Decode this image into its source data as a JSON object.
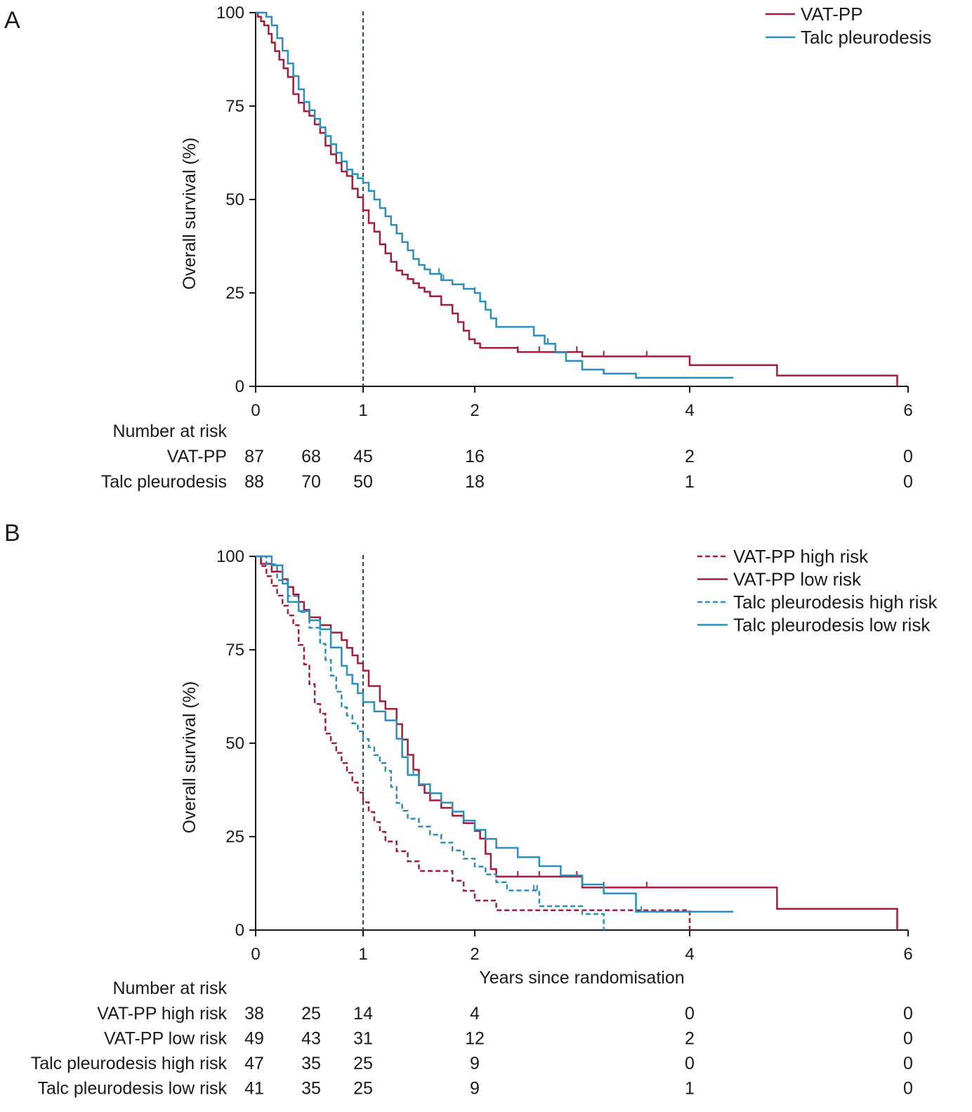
{
  "chart_data": [
    {
      "type": "line",
      "panel_label": "A",
      "step": true,
      "xlabel": "",
      "ylabel": "Overall survival (%)",
      "xlim": [
        0,
        6
      ],
      "ylim": [
        0,
        100
      ],
      "x_ticks": [
        0,
        1,
        2,
        4,
        6
      ],
      "y_ticks": [
        0,
        25,
        50,
        75,
        100
      ],
      "reference_line_x": 1,
      "legend_position": "top-right",
      "series": [
        {
          "name": "VAT-PP",
          "color": "#a51c3c",
          "dash": false,
          "x": [
            0,
            0.02,
            0.05,
            0.08,
            0.12,
            0.15,
            0.18,
            0.22,
            0.26,
            0.3,
            0.35,
            0.4,
            0.45,
            0.5,
            0.55,
            0.6,
            0.65,
            0.7,
            0.75,
            0.8,
            0.85,
            0.9,
            0.95,
            1.0,
            1.05,
            1.1,
            1.15,
            1.2,
            1.25,
            1.3,
            1.35,
            1.4,
            1.45,
            1.5,
            1.55,
            1.6,
            1.7,
            1.8,
            1.85,
            1.9,
            1.95,
            2.0,
            2.05,
            2.1,
            2.15,
            2.25,
            2.4,
            2.6,
            3.0,
            3.2,
            4.0,
            4.8,
            5.9
          ],
          "y": [
            100,
            98.9,
            97.7,
            96.6,
            94.3,
            92.0,
            89.7,
            87.4,
            85.1,
            82.8,
            78.2,
            75.9,
            73.6,
            72.4,
            70.1,
            67.8,
            64.4,
            62.1,
            59.8,
            57.5,
            56.3,
            52.9,
            50.6,
            47.1,
            43.7,
            41.4,
            38.0,
            35.6,
            33.3,
            31.0,
            29.9,
            28.7,
            27.6,
            26.4,
            25.3,
            24.1,
            21.8,
            19.5,
            17.2,
            14.9,
            12.6,
            11.5,
            10.3,
            10.3,
            10.3,
            10.3,
            9.2,
            9.2,
            8.0,
            8.0,
            5.7,
            2.9,
            0
          ],
          "censor_x": [
            2.4,
            2.6,
            2.95,
            3.2,
            3.6
          ]
        },
        {
          "name": "Talc pleurodesis",
          "color": "#2a8fc0",
          "dash": false,
          "x": [
            0,
            0.1,
            0.15,
            0.2,
            0.25,
            0.3,
            0.35,
            0.4,
            0.45,
            0.5,
            0.55,
            0.6,
            0.65,
            0.7,
            0.75,
            0.8,
            0.85,
            0.9,
            0.95,
            1.0,
            1.05,
            1.1,
            1.15,
            1.2,
            1.25,
            1.3,
            1.35,
            1.4,
            1.45,
            1.5,
            1.55,
            1.6,
            1.7,
            1.8,
            1.9,
            2.0,
            2.05,
            2.1,
            2.15,
            2.2,
            2.3,
            2.4,
            2.55,
            2.65,
            2.75,
            2.85,
            3.0,
            3.2,
            3.5,
            4.4
          ],
          "y": [
            100,
            98.9,
            96.6,
            93.2,
            89.8,
            86.4,
            83.0,
            79.5,
            76.1,
            73.9,
            71.6,
            69.3,
            67.0,
            64.8,
            62.5,
            60.2,
            58.0,
            56.8,
            55.7,
            54.5,
            52.3,
            50.0,
            47.7,
            45.5,
            43.2,
            40.9,
            38.6,
            36.4,
            34.1,
            32.5,
            31.3,
            30.1,
            28.4,
            27.3,
            26.1,
            25.0,
            22.7,
            20.5,
            18.2,
            15.9,
            15.9,
            15.9,
            13.6,
            11.4,
            9.1,
            6.8,
            4.5,
            3.4,
            2.3,
            2.3
          ],
          "censor_x": [
            1.68,
            1.72,
            1.9,
            2.0,
            2.65,
            2.68
          ]
        }
      ],
      "risk_table": {
        "title": "Number at risk",
        "times": [
          0,
          0.5,
          1,
          2,
          4,
          6
        ],
        "rows": [
          {
            "label": "VAT-PP",
            "values": [
              "87",
              "68",
              "45",
              "16",
              "2",
              "0"
            ]
          },
          {
            "label": "Talc pleurodesis",
            "values": [
              "88",
              "70",
              "50",
              "18",
              "1",
              "0"
            ]
          }
        ]
      }
    },
    {
      "type": "line",
      "panel_label": "B",
      "step": true,
      "xlabel": "Years since randomisation",
      "ylabel": "Overall survival (%)",
      "xlim": [
        0,
        6
      ],
      "ylim": [
        0,
        100
      ],
      "x_ticks": [
        0,
        1,
        2,
        4,
        6
      ],
      "y_ticks": [
        0,
        25,
        50,
        75,
        100
      ],
      "reference_line_x": 1,
      "legend_position": "top-right",
      "series": [
        {
          "name": "VAT-PP high risk",
          "color": "#a51c3c",
          "dash": true,
          "x": [
            0,
            0.05,
            0.1,
            0.15,
            0.2,
            0.25,
            0.3,
            0.35,
            0.4,
            0.45,
            0.5,
            0.55,
            0.6,
            0.65,
            0.7,
            0.75,
            0.8,
            0.85,
            0.9,
            0.95,
            1.0,
            1.05,
            1.1,
            1.15,
            1.2,
            1.3,
            1.4,
            1.5,
            1.6,
            1.7,
            1.8,
            1.9,
            2.0,
            2.1,
            2.2,
            2.4,
            3.0,
            4.0
          ],
          "y": [
            100,
            97.4,
            94.7,
            92.1,
            89.5,
            86.8,
            84.2,
            81.6,
            76.3,
            71.1,
            65.8,
            60.5,
            57.9,
            52.6,
            50.0,
            47.4,
            44.7,
            42.1,
            39.5,
            36.8,
            34.2,
            31.6,
            28.9,
            26.3,
            23.7,
            21.1,
            18.4,
            15.8,
            15.8,
            15.8,
            13.2,
            10.5,
            7.9,
            7.9,
            5.3,
            5.3,
            5.3,
            0
          ],
          "censor_x": []
        },
        {
          "name": "VAT-PP low risk",
          "color": "#a51c3c",
          "dash": false,
          "x": [
            0,
            0.05,
            0.15,
            0.25,
            0.3,
            0.35,
            0.4,
            0.45,
            0.5,
            0.6,
            0.7,
            0.8,
            0.85,
            0.9,
            0.95,
            1.0,
            1.05,
            1.15,
            1.2,
            1.3,
            1.35,
            1.4,
            1.45,
            1.5,
            1.55,
            1.6,
            1.7,
            1.8,
            1.9,
            2.0,
            2.05,
            2.1,
            2.15,
            2.2,
            2.4,
            3.0,
            4.8,
            5.9
          ],
          "y": [
            100,
            98.0,
            95.9,
            93.9,
            91.8,
            89.8,
            87.8,
            85.7,
            83.7,
            81.6,
            79.6,
            77.6,
            75.5,
            73.5,
            71.4,
            69.4,
            65.3,
            61.2,
            59.2,
            55.1,
            51.0,
            46.9,
            42.9,
            38.8,
            36.7,
            34.7,
            32.7,
            30.6,
            28.6,
            26.5,
            24.5,
            20.4,
            16.3,
            14.3,
            14.3,
            11.4,
            5.7,
            0
          ],
          "censor_x": [
            2.4,
            2.6,
            2.95,
            3.2,
            3.6
          ]
        },
        {
          "name": "Talc pleurodesis high risk",
          "color": "#2a8fc0",
          "dash": true,
          "x": [
            0,
            0.1,
            0.2,
            0.3,
            0.4,
            0.5,
            0.6,
            0.65,
            0.7,
            0.75,
            0.8,
            0.85,
            0.9,
            0.95,
            1.0,
            1.05,
            1.1,
            1.15,
            1.2,
            1.25,
            1.3,
            1.35,
            1.4,
            1.5,
            1.6,
            1.7,
            1.8,
            1.9,
            2.0,
            2.1,
            2.2,
            2.3,
            2.5,
            2.6,
            3.0,
            3.2
          ],
          "y": [
            100,
            97.9,
            93.6,
            89.4,
            85.1,
            80.9,
            76.6,
            72.3,
            68.1,
            63.8,
            59.6,
            57.4,
            55.3,
            53.2,
            51.1,
            48.9,
            46.8,
            44.7,
            42.6,
            38.3,
            34.0,
            31.9,
            29.8,
            27.7,
            25.5,
            23.4,
            21.3,
            19.1,
            17.0,
            14.9,
            12.8,
            10.6,
            10.6,
            6.4,
            4.3,
            0
          ],
          "censor_x": [
            2.55,
            2.58
          ]
        },
        {
          "name": "Talc pleurodesis low risk",
          "color": "#2a8fc0",
          "dash": false,
          "x": [
            0,
            0.15,
            0.25,
            0.3,
            0.4,
            0.5,
            0.6,
            0.7,
            0.8,
            0.85,
            0.9,
            0.95,
            1.0,
            1.1,
            1.2,
            1.3,
            1.35,
            1.4,
            1.5,
            1.6,
            1.7,
            1.8,
            1.9,
            2.0,
            2.1,
            2.2,
            2.4,
            2.6,
            2.8,
            3.0,
            3.2,
            3.5,
            4.4
          ],
          "y": [
            100,
            97.6,
            92.7,
            87.8,
            85.4,
            82.9,
            80.5,
            75.6,
            70.7,
            68.3,
            65.9,
            63.4,
            61.0,
            58.5,
            56.1,
            51.2,
            46.3,
            41.5,
            39.0,
            36.6,
            34.1,
            31.7,
            29.3,
            26.8,
            24.4,
            22.0,
            19.5,
            17.1,
            14.6,
            12.2,
            9.8,
            4.9,
            4.9
          ],
          "censor_x": [
            1.45,
            1.7,
            1.9,
            2.0,
            3.55
          ]
        }
      ],
      "risk_table": {
        "title": "Number at risk",
        "times": [
          0,
          0.5,
          1,
          2,
          4,
          6
        ],
        "rows": [
          {
            "label": "VAT-PP high risk",
            "values": [
              "38",
              "25",
              "14",
              "4",
              "0",
              "0"
            ]
          },
          {
            "label": "VAT-PP low risk",
            "values": [
              "49",
              "43",
              "31",
              "12",
              "2",
              "0"
            ]
          },
          {
            "label": "Talc pleurodesis high risk",
            "values": [
              "47",
              "35",
              "25",
              "9",
              "0",
              "0"
            ]
          },
          {
            "label": "Talc pleurodesis low risk",
            "values": [
              "41",
              "35",
              "25",
              "9",
              "1",
              "0"
            ]
          }
        ]
      }
    }
  ]
}
